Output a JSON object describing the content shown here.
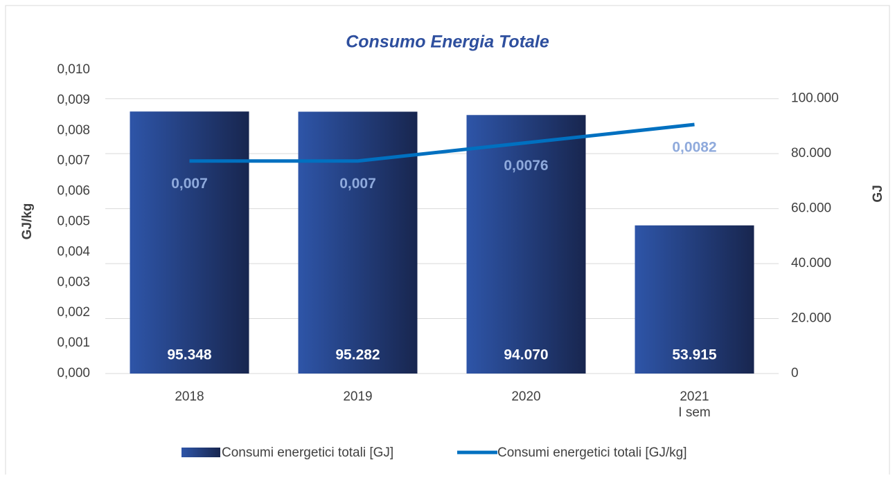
{
  "chart_data": {
    "type": "bar_line",
    "title": "Consumo Energia Totale",
    "y_label": "GJ/kg",
    "y2_label": "GJ",
    "categories": [
      "2018",
      "2019",
      "2020",
      "2021\nI sem"
    ],
    "series": [
      {
        "name": "Consumi energetici totali [GJ]",
        "type": "bar",
        "axis": "y2",
        "color": "#2b4a98",
        "values": [
          95348,
          95282,
          94070,
          53915
        ],
        "value_labels": [
          "95.348",
          "95.282",
          "94.070",
          "53.915"
        ]
      },
      {
        "name": "Consumi energetici totali [GJ/kg]",
        "type": "line",
        "axis": "y",
        "color": "#0070c0",
        "values": [
          0.007,
          0.007,
          0.0076,
          0.0082
        ],
        "value_labels": [
          "0,007",
          "0,007",
          "0,0076",
          "0,0082"
        ]
      }
    ],
    "ylim": [
      0,
      0.01
    ],
    "yticks": [
      {
        "value": 0,
        "label": "0,000"
      },
      {
        "value": 0.001,
        "label": "0,001"
      },
      {
        "value": 0.002,
        "label": "0,002"
      },
      {
        "value": 0.003,
        "label": "0,003"
      },
      {
        "value": 0.004,
        "label": "0,004"
      },
      {
        "value": 0.005,
        "label": "0,005"
      },
      {
        "value": 0.006,
        "label": "0,006"
      },
      {
        "value": 0.007,
        "label": "0,007"
      },
      {
        "value": 0.008,
        "label": "0,008"
      },
      {
        "value": 0.009,
        "label": "0,009"
      },
      {
        "value": 0.01,
        "label": "0,010"
      }
    ],
    "y2lim": [
      0,
      110500
    ],
    "y2ticks": [
      0,
      {
        "value": 20000,
        "label": "20.000"
      },
      {
        "value": 40000,
        "label": "40.000"
      },
      {
        "value": 60000,
        "label": "60.000"
      },
      {
        "value": 80000,
        "label": "80.000"
      },
      {
        "value": 100000,
        "label": "100.000"
      }
    ],
    "grid": true,
    "legend": "bottom"
  }
}
